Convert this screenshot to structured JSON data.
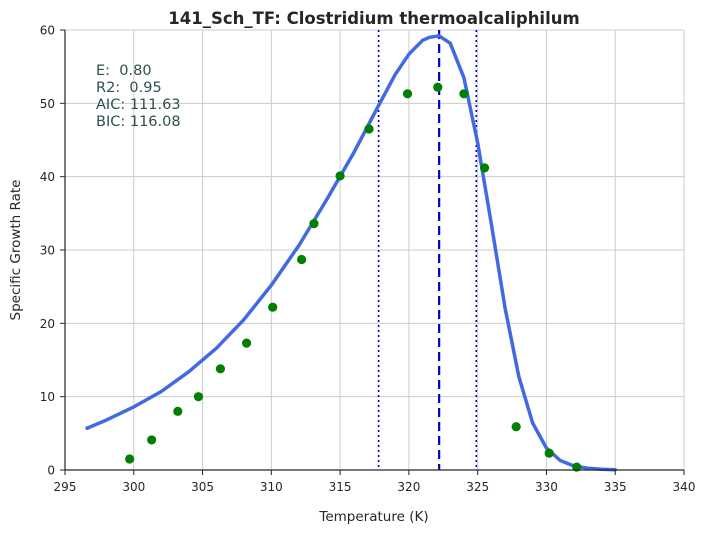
{
  "chart_data": {
    "type": "scatter",
    "title": "141_Sch_TF: Clostridium thermoalcaliphilum",
    "xlabel": "Temperature (K)",
    "ylabel": "Specific Growth Rate",
    "xlim": [
      295,
      340
    ],
    "ylim": [
      0,
      60
    ],
    "xticks": [
      "295",
      "300",
      "305",
      "310",
      "315",
      "320",
      "325",
      "330",
      "335",
      "340"
    ],
    "yticks": [
      "0",
      "10",
      "20",
      "30",
      "40",
      "50",
      "60"
    ],
    "grid": true,
    "stats": [
      "E:  0.80",
      "R2:  0.95",
      "AIC: 111.63",
      "BIC: 116.08"
    ],
    "colors": {
      "points": "#008000",
      "fit": "#4169e1",
      "markers": "#0000cd",
      "stats": "#2f4f4f"
    },
    "points": {
      "x": [
        299.7,
        301.3,
        303.2,
        304.7,
        306.3,
        308.2,
        310.1,
        312.2,
        313.1,
        315.0,
        317.1,
        319.9,
        322.1,
        324.0,
        325.5,
        327.8,
        330.2,
        332.2
      ],
      "y": [
        1.5,
        4.1,
        8.0,
        10.0,
        13.8,
        17.3,
        22.2,
        28.7,
        33.6,
        40.1,
        46.5,
        51.3,
        52.2,
        51.3,
        41.2,
        5.9,
        2.3,
        0.4
      ]
    },
    "fit": {
      "x": [
        296.6,
        298,
        300,
        302,
        304,
        306,
        308,
        310,
        312,
        314,
        316,
        317.8,
        319,
        320,
        321,
        321.5,
        322.2,
        323,
        324,
        325,
        326,
        327,
        328,
        329,
        330,
        331,
        332,
        333,
        334,
        335
      ],
      "y": [
        5.7,
        6.8,
        8.6,
        10.7,
        13.4,
        16.6,
        20.5,
        25.2,
        30.6,
        36.8,
        43.3,
        49.7,
        53.9,
        56.7,
        58.6,
        59.0,
        59.2,
        58.2,
        53.5,
        44.6,
        33.5,
        22.0,
        12.7,
        6.4,
        3.0,
        1.3,
        0.55,
        0.25,
        0.1,
        0.04
      ]
    },
    "vlines": [
      {
        "x": 317.8,
        "style": "dotted"
      },
      {
        "x": 322.2,
        "style": "dashed"
      },
      {
        "x": 324.9,
        "style": "dotted"
      }
    ]
  }
}
